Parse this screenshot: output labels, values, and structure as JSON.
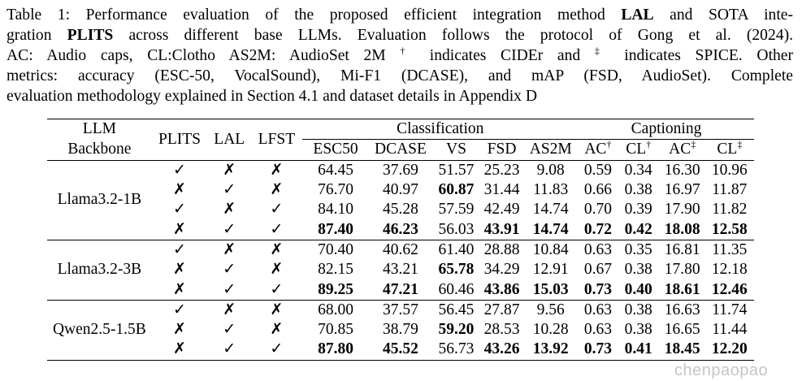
{
  "caption": {
    "lines": [
      [
        {
          "t": "Table 1: Performance evaluation of the proposed efficient integration method "
        },
        {
          "t": "LAL",
          "b": true
        },
        {
          "t": " and SOTA inte-"
        }
      ],
      [
        {
          "t": "gration "
        },
        {
          "t": "PLITS",
          "b": true
        },
        {
          "t": " across different base LLMs. Evaluation follows the protocol of Gong et al. (2024)."
        }
      ],
      [
        {
          "t": "AC: Audio caps, CL:Clotho AS2M: AudioSet 2M "
        },
        {
          "t": "†",
          "sup": true
        },
        {
          "t": " indicates CIDEr and "
        },
        {
          "t": "‡",
          "sup": true
        },
        {
          "t": " indicates SPICE. Other"
        }
      ],
      [
        {
          "t": "metrics: accuracy (ESC-50, VocalSound), Mi-F1 (DCASE), and mAP (FSD, AudioSet). Complete"
        }
      ],
      [
        {
          "t": "evaluation methodology explained in Section 4.1 and dataset details in Appendix D"
        }
      ]
    ]
  },
  "table": {
    "header": {
      "backbone_line1": "LLM",
      "backbone_line2": "Backbone",
      "plits": "PLITS",
      "lal": "LAL",
      "lfst": "LFST",
      "classification": "Classification",
      "captioning": "Captioning",
      "columns": [
        {
          "label": "ESC50"
        },
        {
          "label": "DCASE"
        },
        {
          "label": "VS"
        },
        {
          "label": "FSD"
        },
        {
          "label": "AS2M"
        },
        {
          "label": "AC",
          "sup": "†"
        },
        {
          "label": "CL",
          "sup": "†"
        },
        {
          "label": "AC",
          "sup": "‡"
        },
        {
          "label": "CL",
          "sup": "‡"
        }
      ]
    },
    "check_symbol": "✓",
    "cross_symbol": "✗",
    "groups": [
      {
        "backbone": "Llama3.2-1B",
        "rows": [
          {
            "plits": true,
            "lal": false,
            "lfst": false,
            "values": [
              "64.45",
              "37.69",
              "51.57",
              "25.23",
              "9.08",
              "0.59",
              "0.34",
              "16.30",
              "10.96"
            ],
            "bold": []
          },
          {
            "plits": false,
            "lal": true,
            "lfst": false,
            "values": [
              "76.70",
              "40.97",
              "60.87",
              "31.44",
              "11.83",
              "0.66",
              "0.38",
              "16.97",
              "11.87"
            ],
            "bold": [
              2
            ]
          },
          {
            "plits": true,
            "lal": false,
            "lfst": true,
            "values": [
              "84.10",
              "45.28",
              "57.59",
              "42.49",
              "14.74",
              "0.70",
              "0.39",
              "17.90",
              "11.82"
            ],
            "bold": []
          },
          {
            "plits": false,
            "lal": true,
            "lfst": true,
            "values": [
              "87.40",
              "46.23",
              "56.03",
              "43.91",
              "14.74",
              "0.72",
              "0.42",
              "18.08",
              "12.58"
            ],
            "bold": [
              0,
              1,
              3,
              4,
              5,
              6,
              7,
              8
            ]
          }
        ]
      },
      {
        "backbone": "Llama3.2-3B",
        "rows": [
          {
            "plits": true,
            "lal": false,
            "lfst": false,
            "values": [
              "70.40",
              "40.62",
              "61.40",
              "28.88",
              "10.84",
              "0.63",
              "0.35",
              "16.81",
              "11.35"
            ],
            "bold": []
          },
          {
            "plits": false,
            "lal": true,
            "lfst": false,
            "values": [
              "82.15",
              "43.21",
              "65.78",
              "34.29",
              "12.91",
              "0.67",
              "0.38",
              "17.80",
              "12.18"
            ],
            "bold": [
              2
            ]
          },
          {
            "plits": false,
            "lal": true,
            "lfst": true,
            "values": [
              "89.25",
              "47.21",
              "60.46",
              "43.86",
              "15.03",
              "0.73",
              "0.40",
              "18.61",
              "12.46"
            ],
            "bold": [
              0,
              1,
              3,
              4,
              5,
              6,
              7,
              8
            ]
          }
        ]
      },
      {
        "backbone": "Qwen2.5-1.5B",
        "rows": [
          {
            "plits": true,
            "lal": false,
            "lfst": false,
            "values": [
              "68.00",
              "37.57",
              "56.45",
              "27.87",
              "9.56",
              "0.63",
              "0.38",
              "16.63",
              "11.74"
            ],
            "bold": []
          },
          {
            "plits": false,
            "lal": true,
            "lfst": false,
            "values": [
              "70.85",
              "38.79",
              "59.20",
              "28.53",
              "10.28",
              "0.63",
              "0.38",
              "16.65",
              "11.44"
            ],
            "bold": [
              2
            ]
          },
          {
            "plits": false,
            "lal": true,
            "lfst": true,
            "values": [
              "87.80",
              "45.52",
              "56.73",
              "43.26",
              "13.92",
              "0.73",
              "0.41",
              "18.45",
              "12.20"
            ],
            "bold": [
              0,
              1,
              3,
              4,
              5,
              6,
              7,
              8
            ]
          }
        ]
      }
    ]
  },
  "watermark": "chenpaopao"
}
